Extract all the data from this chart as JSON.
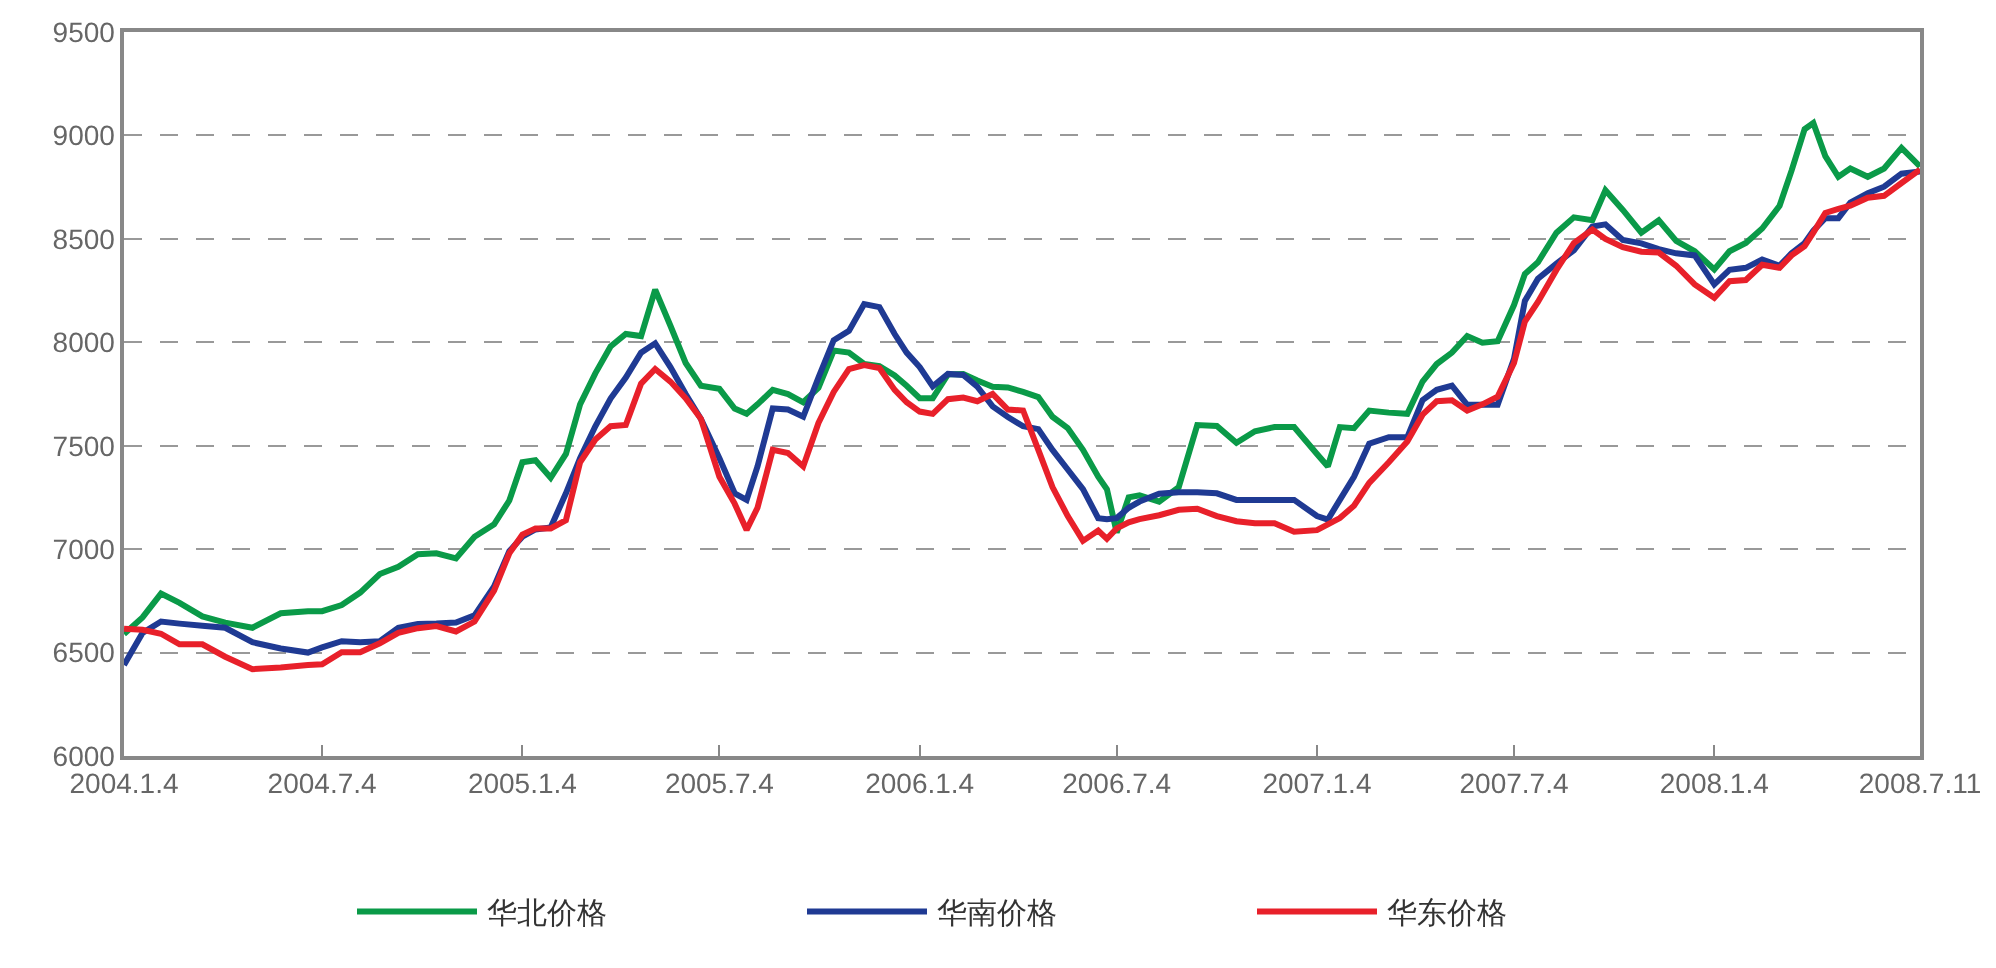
{
  "chart_data": {
    "type": "line",
    "x": [
      "2004-01-04",
      "2004-01-21",
      "2004-02-07",
      "2004-02-24",
      "2004-03-16",
      "2004-04-06",
      "2004-05-01",
      "2004-05-27",
      "2004-06-21",
      "2004-07-04",
      "2004-07-22",
      "2004-08-08",
      "2004-08-26",
      "2004-09-12",
      "2004-09-30",
      "2004-10-17",
      "2004-11-04",
      "2004-11-21",
      "2004-12-09",
      "2004-12-23",
      "2005-01-04",
      "2005-01-16",
      "2005-01-30",
      "2005-02-13",
      "2005-02-26",
      "2005-03-12",
      "2005-03-26",
      "2005-04-09",
      "2005-04-23",
      "2005-05-06",
      "2005-05-20",
      "2005-06-03",
      "2005-06-17",
      "2005-07-04",
      "2005-07-18",
      "2005-07-29",
      "2005-08-08",
      "2005-08-22",
      "2005-09-05",
      "2005-09-19",
      "2005-10-03",
      "2005-10-17",
      "2005-10-31",
      "2005-11-14",
      "2005-11-28",
      "2005-12-12",
      "2005-12-23",
      "2006-01-04",
      "2006-01-16",
      "2006-01-30",
      "2006-02-13",
      "2006-02-26",
      "2006-03-12",
      "2006-03-26",
      "2006-04-09",
      "2006-04-23",
      "2006-05-06",
      "2006-05-20",
      "2006-06-03",
      "2006-06-17",
      "2006-06-25",
      "2006-07-04",
      "2006-07-15",
      "2006-07-25",
      "2006-08-12",
      "2006-08-30",
      "2006-09-16",
      "2006-10-04",
      "2006-10-22",
      "2006-11-08",
      "2006-11-26",
      "2006-12-14",
      "2007-01-04",
      "2007-01-14",
      "2007-01-25",
      "2007-02-07",
      "2007-02-21",
      "2007-03-11",
      "2007-03-28",
      "2007-04-11",
      "2007-04-24",
      "2007-05-08",
      "2007-05-22",
      "2007-06-05",
      "2007-06-19",
      "2007-07-04",
      "2007-07-14",
      "2007-07-26",
      "2007-08-12",
      "2007-08-28",
      "2007-09-14",
      "2007-09-26",
      "2007-10-12",
      "2007-10-29",
      "2007-11-14",
      "2007-11-30",
      "2007-12-17",
      "2008-01-04",
      "2008-01-18",
      "2008-02-02",
      "2008-02-17",
      "2008-03-04",
      "2008-03-15",
      "2008-03-27",
      "2008-04-04",
      "2008-04-15",
      "2008-04-27",
      "2008-05-08",
      "2008-05-24",
      "2008-06-08",
      "2008-06-24",
      "2008-07-11"
    ],
    "series": [
      {
        "name": "华北价格",
        "color": "#0a9a48",
        "values": [
          6590,
          6670,
          6785,
          6740,
          6675,
          6645,
          6620,
          6690,
          6700,
          6700,
          6730,
          6790,
          6880,
          6915,
          6975,
          6980,
          6955,
          7060,
          7120,
          7235,
          7420,
          7430,
          7345,
          7460,
          7700,
          7850,
          7980,
          8040,
          8030,
          8255,
          8080,
          7900,
          7790,
          7775,
          7680,
          7655,
          7700,
          7770,
          7750,
          7710,
          7780,
          7960,
          7950,
          7895,
          7885,
          7840,
          7790,
          7730,
          7730,
          7845,
          7847,
          7815,
          7785,
          7782,
          7760,
          7735,
          7640,
          7585,
          7480,
          7350,
          7290,
          7080,
          7250,
          7260,
          7230,
          7300,
          7600,
          7595,
          7514,
          7570,
          7590,
          7590,
          7460,
          7400,
          7590,
          7585,
          7670,
          7660,
          7654,
          7810,
          7895,
          7950,
          8030,
          7998,
          8005,
          8180,
          8330,
          8387,
          8530,
          8604,
          8590,
          8735,
          8640,
          8530,
          8590,
          8490,
          8440,
          8352,
          8440,
          8480,
          8550,
          8660,
          8830,
          9030,
          9060,
          8900,
          8800,
          8840,
          8800,
          8840,
          8940,
          8850
        ]
      },
      {
        "name": "华南价格",
        "color": "#1f3a93",
        "values": [
          6440,
          6595,
          6650,
          6640,
          6630,
          6620,
          6550,
          6520,
          6500,
          6525,
          6555,
          6550,
          6555,
          6620,
          6638,
          6640,
          6645,
          6680,
          6820,
          6990,
          7060,
          7095,
          7105,
          7270,
          7440,
          7594,
          7728,
          7830,
          7950,
          7995,
          7880,
          7750,
          7630,
          7440,
          7270,
          7238,
          7400,
          7680,
          7675,
          7640,
          7830,
          8010,
          8055,
          8185,
          8170,
          8040,
          7950,
          7880,
          7787,
          7847,
          7842,
          7785,
          7690,
          7639,
          7594,
          7580,
          7480,
          7385,
          7290,
          7150,
          7145,
          7150,
          7200,
          7230,
          7268,
          7275,
          7275,
          7270,
          7238,
          7238,
          7238,
          7238,
          7160,
          7143,
          7238,
          7350,
          7510,
          7541,
          7541,
          7720,
          7770,
          7790,
          7698,
          7698,
          7698,
          7920,
          8200,
          8307,
          8380,
          8445,
          8560,
          8570,
          8495,
          8478,
          8450,
          8430,
          8420,
          8280,
          8350,
          8360,
          8400,
          8370,
          8430,
          8480,
          8540,
          8600,
          8600,
          8675,
          8720,
          8752,
          8815,
          8826
        ]
      },
      {
        "name": "华东价格",
        "color": "#e8202a",
        "values": [
          6615,
          6610,
          6591,
          6540,
          6540,
          6480,
          6420,
          6428,
          6440,
          6443,
          6502,
          6502,
          6545,
          6595,
          6618,
          6628,
          6602,
          6650,
          6800,
          6980,
          7070,
          7100,
          7100,
          7140,
          7420,
          7530,
          7594,
          7600,
          7800,
          7871,
          7810,
          7730,
          7630,
          7350,
          7220,
          7093,
          7200,
          7480,
          7465,
          7400,
          7610,
          7760,
          7870,
          7890,
          7876,
          7770,
          7710,
          7665,
          7654,
          7725,
          7733,
          7715,
          7750,
          7675,
          7670,
          7480,
          7300,
          7160,
          7040,
          7090,
          7050,
          7100,
          7130,
          7145,
          7164,
          7190,
          7195,
          7160,
          7135,
          7125,
          7125,
          7084,
          7092,
          7120,
          7150,
          7210,
          7320,
          7420,
          7520,
          7650,
          7715,
          7720,
          7670,
          7700,
          7737,
          7900,
          8100,
          8195,
          8350,
          8480,
          8545,
          8500,
          8460,
          8438,
          8434,
          8370,
          8280,
          8215,
          8295,
          8301,
          8375,
          8360,
          8420,
          8465,
          8530,
          8625,
          8645,
          8660,
          8699,
          8708,
          8770,
          8835
        ]
      }
    ],
    "xlim": [
      "2004-01-04",
      "2008-07-11"
    ],
    "xticks": [
      {
        "value": "2004-01-04",
        "label": "2004.1.4"
      },
      {
        "value": "2004-07-04",
        "label": "2004.7.4"
      },
      {
        "value": "2005-01-04",
        "label": "2005.1.4"
      },
      {
        "value": "2005-07-04",
        "label": "2005.7.4"
      },
      {
        "value": "2006-01-04",
        "label": "2006.1.4"
      },
      {
        "value": "2006-07-04",
        "label": "2006.7.4"
      },
      {
        "value": "2007-01-04",
        "label": "2007.1.4"
      },
      {
        "value": "2007-07-04",
        "label": "2007.7.4"
      },
      {
        "value": "2008-01-04",
        "label": "2008.1.4"
      },
      {
        "value": "2008-07-11",
        "label": "2008.7.11"
      }
    ],
    "ylim": [
      6000,
      9500
    ],
    "yticks": [
      6000,
      6500,
      7000,
      7500,
      8000,
      8500,
      9000,
      9500
    ],
    "grid": "y",
    "legend": "bottom",
    "marker": "none",
    "line_style": "solid"
  }
}
